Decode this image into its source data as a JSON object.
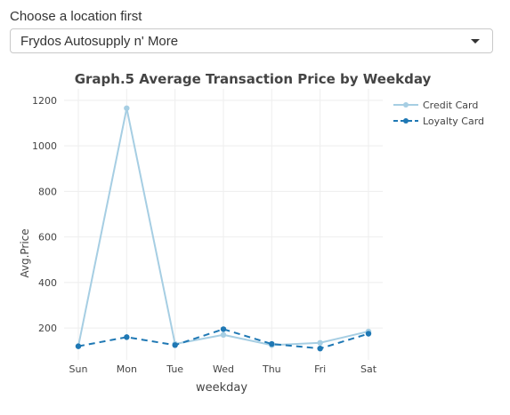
{
  "location": {
    "label": "Choose a location first",
    "selected": "Frydos Autosupply n' More"
  },
  "colors": {
    "credit": "#a6cee3",
    "loyalty": "#1f78b4",
    "grid": "#eeeeee"
  },
  "chart_data": {
    "type": "line",
    "title": "Graph.5 Average Transaction Price by Weekday",
    "xlabel": "weekday",
    "ylabel": "Avg.Price",
    "categories": [
      "Sun",
      "Mon",
      "Tue",
      "Wed",
      "Thu",
      "Fri",
      "Sat"
    ],
    "yticks": [
      200,
      400,
      600,
      800,
      1000,
      1200
    ],
    "ylim": [
      60,
      1250
    ],
    "grid": true,
    "legend_position": "top-right",
    "series": [
      {
        "name": "Credit Card",
        "style": "solid",
        "color": "#a6cee3",
        "values": [
          120,
          1165,
          130,
          170,
          125,
          135,
          185
        ]
      },
      {
        "name": "Loyalty Card",
        "style": "dashed",
        "color": "#1f78b4",
        "values": [
          120,
          160,
          125,
          195,
          130,
          110,
          175
        ]
      }
    ]
  }
}
